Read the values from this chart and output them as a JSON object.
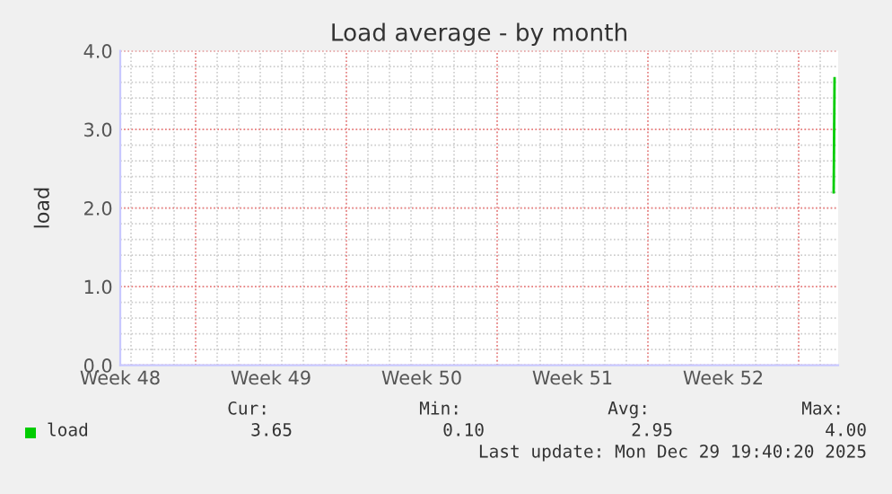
{
  "chart_data": {
    "type": "line",
    "title": "Load average - by month",
    "ylabel": "load",
    "series": [
      {
        "name": "load",
        "color": "#00cc00",
        "x": [
          "2025-12-29T15:00",
          "2025-12-29T16:00"
        ],
        "values": [
          2.2,
          3.65
        ]
      }
    ],
    "xlim": [
      "2025-11-26T12:00",
      "2025-12-29T20:00"
    ],
    "xticks": [
      {
        "value": "2025-11-26T12:00",
        "label": "Week 48"
      },
      {
        "value": "2025-11-30T00:00",
        "label": null
      },
      {
        "value": "2025-12-03T12:00",
        "label": "Week 49"
      },
      {
        "value": "2025-12-07T00:00",
        "label": null
      },
      {
        "value": "2025-12-10T12:00",
        "label": "Week 50"
      },
      {
        "value": "2025-12-14T00:00",
        "label": null
      },
      {
        "value": "2025-12-17T12:00",
        "label": "Week 51"
      },
      {
        "value": "2025-12-21T00:00",
        "label": null
      },
      {
        "value": "2025-12-24T12:00",
        "label": "Week 52"
      },
      {
        "value": "2025-12-28T00:00",
        "label": null
      }
    ],
    "ylim": [
      0,
      4
    ],
    "yticks": [
      {
        "value": 0,
        "label": "0.0"
      },
      {
        "value": 1,
        "label": "1.0"
      },
      {
        "value": 2,
        "label": "2.0"
      },
      {
        "value": 3,
        "label": "3.0"
      },
      {
        "value": 4,
        "label": "4.0"
      }
    ],
    "grid": true,
    "legend": "bottom left",
    "annotations": [
      "Cur:",
      "Min:",
      "Avg:",
      "Max:",
      "3.65",
      "0.10",
      "2.95",
      "4.00",
      "Last update: Mon Dec 29 19:40:20 2025"
    ]
  }
}
